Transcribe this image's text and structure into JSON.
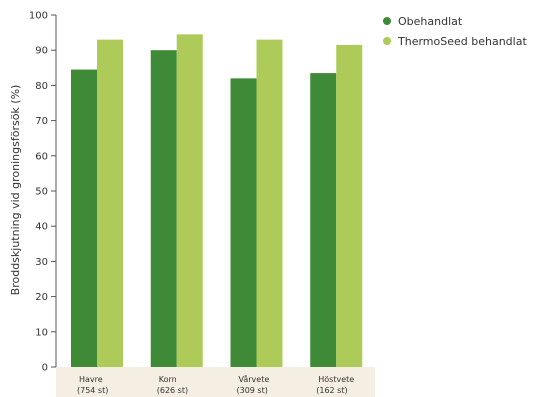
{
  "chart_data": {
    "type": "bar",
    "categories": [
      {
        "name": "Havre",
        "count": "(754 st)"
      },
      {
        "name": "Korn",
        "count": "(626 st)"
      },
      {
        "name": "Vårvete",
        "count": "(309 st)"
      },
      {
        "name": "Höstvete",
        "count": "(162 st)"
      }
    ],
    "series": [
      {
        "name": "Obehandlat",
        "color": "#3f8a36",
        "values": [
          84.5,
          90,
          82,
          83.5
        ]
      },
      {
        "name": "ThermoSeed behandlat",
        "color": "#aecb5a",
        "values": [
          93,
          94.5,
          93,
          91.5
        ]
      }
    ],
    "ylabel": "Broddskjutning vid groningsförsök (%)",
    "ylim": [
      0,
      100
    ],
    "yticks": [
      0,
      10,
      20,
      30,
      40,
      50,
      60,
      70,
      80,
      90,
      100
    ],
    "grid": false,
    "legend_position": "top-right",
    "category_band_color": "#f5efe3"
  }
}
